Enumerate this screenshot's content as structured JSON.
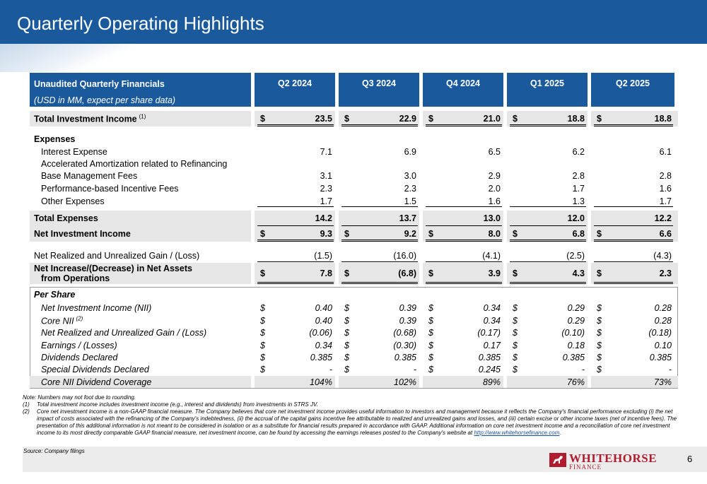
{
  "title": "Quarterly Operating Highlights",
  "table": {
    "header_title": "Unaudited Quarterly Financials",
    "header_sub": "(USD in MM, expect per share data)",
    "quarters": [
      "Q2 2024",
      "Q3 2024",
      "Q4 2024",
      "Q1 2025",
      "Q2 2025"
    ],
    "currency": "$",
    "total_investment_income": {
      "label": "Total Investment Income",
      "sup": "(1)",
      "values": [
        "23.5",
        "22.9",
        "21.0",
        "18.8",
        "18.8"
      ]
    },
    "expenses_label": "Expenses",
    "interest_expense": {
      "label": "Interest Expense",
      "values": [
        "7.1",
        "6.9",
        "6.5",
        "6.2",
        "6.1"
      ]
    },
    "accelerated_amortization": {
      "label": "Accelerated Amortization related to Refinancing"
    },
    "base_mgmt_fees": {
      "label": "Base Management Fees",
      "values": [
        "3.1",
        "3.0",
        "2.9",
        "2.8",
        "2.8"
      ]
    },
    "performance_fees": {
      "label": "Performance-based Incentive Fees",
      "values": [
        "2.3",
        "2.3",
        "2.0",
        "1.7",
        "1.6"
      ]
    },
    "other_expenses": {
      "label": "Other Expenses",
      "values": [
        "1.7",
        "1.5",
        "1.6",
        "1.3",
        "1.7"
      ]
    },
    "total_expenses": {
      "label": "Total Expenses",
      "values": [
        "14.2",
        "13.7",
        "13.0",
        "12.0",
        "12.2"
      ]
    },
    "net_investment_income": {
      "label": "Net Investment Income",
      "values": [
        "9.3",
        "9.2",
        "8.0",
        "6.8",
        "6.6"
      ]
    },
    "net_realized": {
      "label": "Net Realized and Unrealized Gain / (Loss)",
      "values": [
        "(1.5)",
        "(16.0)",
        "(4.1)",
        "(2.5)",
        "(4.3)"
      ]
    },
    "net_increase": {
      "label1": "Net Increase/(Decrease) in Net Assets",
      "label2": "from Operations",
      "values": [
        "7.8",
        "(6.8)",
        "3.9",
        "4.3",
        "2.3"
      ]
    },
    "per_share_label": "Per Share",
    "ps_nii": {
      "label": "Net Investment Income (NII)",
      "values": [
        "0.40",
        "0.39",
        "0.34",
        "0.29",
        "0.28"
      ]
    },
    "ps_core_nii": {
      "label": "Core NII",
      "sup": "(2)",
      "values": [
        "0.40",
        "0.39",
        "0.34",
        "0.29",
        "0.28"
      ]
    },
    "ps_net_realized": {
      "label": "Net Realized and Unrealized Gain / (Loss)",
      "values": [
        "(0.06)",
        "(0.68)",
        "(0.17)",
        "(0.10)",
        "(0.18)"
      ]
    },
    "ps_earnings": {
      "label": "Earnings / (Losses)",
      "values": [
        "0.34",
        "(0.30)",
        "0.17",
        "0.18",
        "0.10"
      ]
    },
    "ps_dividends": {
      "label": "Dividends Declared",
      "values": [
        "0.385",
        "0.385",
        "0.385",
        "0.385",
        "0.385"
      ]
    },
    "ps_special_dividends": {
      "label": "Special Dividends Declared",
      "values": [
        "-",
        "-",
        "0.245",
        "-",
        "-"
      ]
    },
    "ps_coverage": {
      "label": "Core NII Dividend Coverage",
      "values": [
        "104%",
        "102%",
        "89%",
        "76%",
        "73%"
      ]
    }
  },
  "footnotes": {
    "note": "Note: Numbers may not foot due to rounding.",
    "fn1_num": "(1)",
    "fn1_text": "Total investment income includes investment income (e.g., interest and dividends) from investments in STRS JV.",
    "fn2_num": "(2)",
    "fn2_text": "Core net investment income is a non-GAAP financial measure. The Company believes that core net investment income provides useful information to investors and management because it reflects the Company's financial performance excluding (i) the net impact of costs associated with the refinancing of the Company's indebtedness, (ii) the accrual of the capital gains incentive fee attributable to realized and unrealized gains and losses, and (iii) certain excise or other income taxes (net of incentive fees). The presentation of this additional information is not meant to be considered in isolation or as a substitute for financial results prepared in accordance with GAAP. Additional information on core net investment income and a reconciliation of core net investment income to its most directly comparable GAAP financial measure, net investment income, can be found by accessing the earnings releases posted to the Company's website at",
    "fn2_link": "http://www.whitehorsefinance.com",
    "fn2_end": "."
  },
  "source": "Source: Company filings",
  "logo": {
    "name": "WHITEHORSE",
    "sub": "FINANCE"
  },
  "page_number": "6",
  "colors": {
    "brand_blue": "#1a5a9c",
    "logo_red": "#b01c2e",
    "band_gray": "#e6e6e6"
  }
}
